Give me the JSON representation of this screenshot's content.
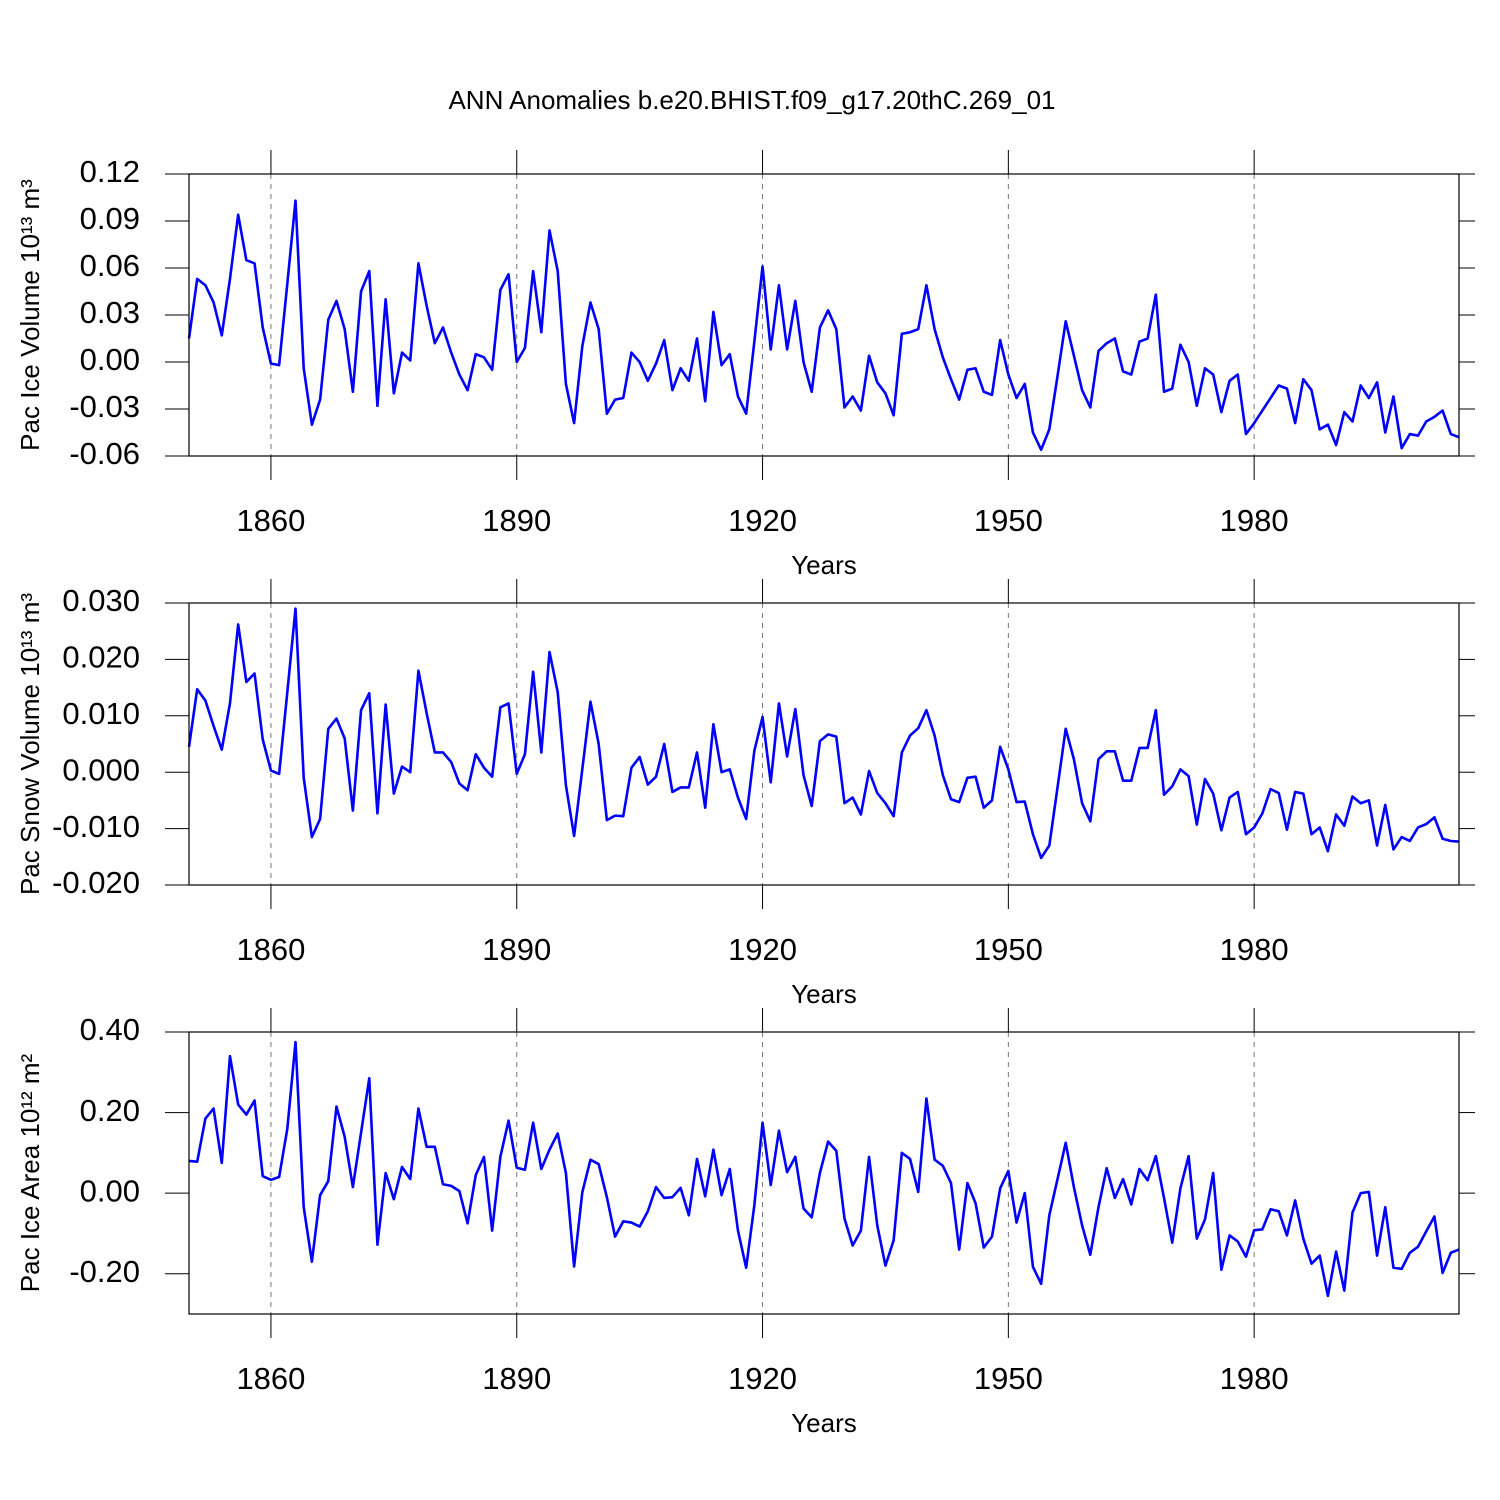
{
  "chart_data": [
    {
      "type": "line",
      "title": "ANN Anomalies b.e20.BHIST.f09_g17.20thC.269_01",
      "xlabel": "Years",
      "ylabel": "Pac Ice Volume 10¹³ m³",
      "x": [
        1850,
        1851,
        1852,
        1853,
        1854,
        1855,
        1856,
        1857,
        1858,
        1859,
        1860,
        1861,
        1862,
        1863,
        1864,
        1865,
        1866,
        1867,
        1868,
        1869,
        1870,
        1871,
        1872,
        1873,
        1874,
        1875,
        1876,
        1877,
        1878,
        1879,
        1880,
        1881,
        1882,
        1883,
        1884,
        1885,
        1886,
        1887,
        1888,
        1889,
        1890,
        1891,
        1892,
        1893,
        1894,
        1895,
        1896,
        1897,
        1898,
        1899,
        1900,
        1901,
        1902,
        1903,
        1904,
        1905,
        1906,
        1907,
        1908,
        1909,
        1910,
        1911,
        1912,
        1913,
        1914,
        1915,
        1916,
        1917,
        1918,
        1919,
        1920,
        1921,
        1922,
        1923,
        1924,
        1925,
        1926,
        1927,
        1928,
        1929,
        1930,
        1931,
        1932,
        1933,
        1934,
        1935,
        1936,
        1937,
        1938,
        1939,
        1940,
        1941,
        1942,
        1943,
        1944,
        1945,
        1946,
        1947,
        1948,
        1949,
        1950,
        1951,
        1952,
        1953,
        1954,
        1955,
        1956,
        1957,
        1958,
        1959,
        1960,
        1961,
        1962,
        1963,
        1964,
        1965,
        1966,
        1967,
        1968,
        1969,
        1970,
        1971,
        1972,
        1973,
        1974,
        1975,
        1976,
        1977,
        1978,
        1979,
        1980,
        1981,
        1982,
        1983,
        1984,
        1985,
        1986,
        1987,
        1988,
        1989,
        1990,
        1991,
        1992,
        1993,
        1994,
        1995,
        1996,
        1997,
        1998,
        1999,
        2000,
        2001,
        2002,
        2003,
        2004,
        2005
      ],
      "series": [
        {
          "color": "#0000ff",
          "values": [
            0.015,
            0.053,
            0.049,
            0.038,
            0.017,
            0.053,
            0.094,
            0.065,
            0.063,
            0.022,
            -0.001,
            -0.002,
            0.05,
            0.103,
            -0.004,
            -0.04,
            -0.024,
            0.027,
            0.039,
            0.021,
            -0.019,
            0.045,
            0.058,
            -0.028,
            0.04,
            -0.02,
            0.006,
            0.001,
            0.063,
            0.036,
            0.012,
            0.022,
            0.006,
            -0.008,
            -0.018,
            0.005,
            0.003,
            -0.005,
            0.046,
            0.056,
            0.0,
            0.009,
            0.058,
            0.019,
            0.084,
            0.058,
            -0.014,
            -0.039,
            0.01,
            0.038,
            0.021,
            -0.033,
            -0.024,
            -0.023,
            0.006,
            0.0,
            -0.012,
            -0.001,
            0.014,
            -0.018,
            -0.004,
            -0.012,
            0.015,
            -0.025,
            0.032,
            -0.002,
            0.005,
            -0.022,
            -0.033,
            0.013,
            0.061,
            0.008,
            0.049,
            0.008,
            0.039,
            0.0,
            -0.019,
            0.022,
            0.033,
            0.021,
            -0.029,
            -0.022,
            -0.031,
            0.004,
            -0.013,
            -0.02,
            -0.034,
            0.018,
            0.019,
            0.021,
            0.049,
            0.021,
            0.003,
            -0.011,
            -0.024,
            -0.005,
            -0.004,
            -0.019,
            -0.021,
            0.014,
            -0.008,
            -0.023,
            -0.014,
            -0.045,
            -0.056,
            -0.043,
            -0.009,
            0.026,
            0.004,
            -0.018,
            -0.029,
            0.007,
            0.012,
            0.015,
            -0.006,
            -0.008,
            0.013,
            0.015,
            0.043,
            -0.019,
            -0.017,
            0.011,
            0.0,
            -0.028,
            -0.004,
            -0.008,
            -0.032,
            -0.012,
            -0.008,
            -0.046,
            -0.039,
            -0.031,
            -0.023,
            -0.015,
            -0.017,
            -0.039,
            -0.011,
            -0.018,
            -0.043,
            -0.04,
            -0.053,
            -0.032,
            -0.038,
            -0.015,
            -0.023,
            -0.013,
            -0.045,
            -0.022,
            -0.055,
            -0.046,
            -0.047,
            -0.038,
            -0.035,
            -0.031,
            -0.046,
            -0.048
          ]
        }
      ],
      "xlim": [
        1850,
        2005
      ],
      "xticks": [
        1860,
        1890,
        1920,
        1950,
        1980
      ],
      "ylim": [
        -0.06,
        0.12
      ],
      "yticks": [
        0.12,
        0.09,
        0.06,
        0.03,
        {
          "value": 0,
          "label": "0.00"
        },
        -0.03,
        -0.06
      ],
      "grid": true
    },
    {
      "type": "line",
      "xlabel": "Years",
      "ylabel": "Pac Snow Volume 10¹³ m³",
      "x": [
        1850,
        1851,
        1852,
        1853,
        1854,
        1855,
        1856,
        1857,
        1858,
        1859,
        1860,
        1861,
        1862,
        1863,
        1864,
        1865,
        1866,
        1867,
        1868,
        1869,
        1870,
        1871,
        1872,
        1873,
        1874,
        1875,
        1876,
        1877,
        1878,
        1879,
        1880,
        1881,
        1882,
        1883,
        1884,
        1885,
        1886,
        1887,
        1888,
        1889,
        1890,
        1891,
        1892,
        1893,
        1894,
        1895,
        1896,
        1897,
        1898,
        1899,
        1900,
        1901,
        1902,
        1903,
        1904,
        1905,
        1906,
        1907,
        1908,
        1909,
        1910,
        1911,
        1912,
        1913,
        1914,
        1915,
        1916,
        1917,
        1918,
        1919,
        1920,
        1921,
        1922,
        1923,
        1924,
        1925,
        1926,
        1927,
        1928,
        1929,
        1930,
        1931,
        1932,
        1933,
        1934,
        1935,
        1936,
        1937,
        1938,
        1939,
        1940,
        1941,
        1942,
        1943,
        1944,
        1945,
        1946,
        1947,
        1948,
        1949,
        1950,
        1951,
        1952,
        1953,
        1954,
        1955,
        1956,
        1957,
        1958,
        1959,
        1960,
        1961,
        1962,
        1963,
        1964,
        1965,
        1966,
        1967,
        1968,
        1969,
        1970,
        1971,
        1972,
        1973,
        1974,
        1975,
        1976,
        1977,
        1978,
        1979,
        1980,
        1981,
        1982,
        1983,
        1984,
        1985,
        1986,
        1987,
        1988,
        1989,
        1990,
        1991,
        1992,
        1993,
        1994,
        1995,
        1996,
        1997,
        1998,
        1999,
        2000,
        2001,
        2002,
        2003,
        2004,
        2005
      ],
      "series": [
        {
          "color": "#0000ff",
          "values": [
            0.0045,
            0.0147,
            0.0127,
            0.0082,
            0.004,
            0.0122,
            0.0262,
            0.016,
            0.0175,
            0.0058,
            0.0003,
            -0.0003,
            0.0142,
            0.029,
            -0.001,
            -0.0115,
            -0.0083,
            0.0077,
            0.0095,
            0.006,
            -0.0068,
            0.011,
            0.014,
            -0.0073,
            0.012,
            -0.0038,
            0.001,
            0.0,
            0.018,
            0.0105,
            0.0035,
            0.0035,
            0.0018,
            -0.002,
            -0.0032,
            0.0032,
            0.0008,
            -0.0008,
            0.0115,
            0.0122,
            -0.0003,
            0.0032,
            0.0178,
            0.0035,
            0.0213,
            0.0142,
            -0.0023,
            -0.0113,
            0.0005,
            0.0125,
            0.005,
            -0.0085,
            -0.0077,
            -0.0078,
            0.0008,
            0.0027,
            -0.0022,
            -0.0008,
            0.005,
            -0.0035,
            -0.0027,
            -0.0027,
            0.0035,
            -0.0063,
            0.0085,
            0.0,
            0.0005,
            -0.0045,
            -0.0083,
            0.0038,
            0.0098,
            -0.0018,
            0.0122,
            0.0028,
            0.0112,
            -0.0005,
            -0.006,
            0.0055,
            0.0067,
            0.0063,
            -0.0055,
            -0.0045,
            -0.0075,
            0.0002,
            -0.0037,
            -0.0055,
            -0.0078,
            0.0035,
            0.0065,
            0.0078,
            0.011,
            0.0065,
            -0.0005,
            -0.0048,
            -0.0053,
            -0.001,
            -0.0008,
            -0.0063,
            -0.005,
            0.0045,
            0.0005,
            -0.0053,
            -0.0052,
            -0.011,
            -0.0152,
            -0.013,
            -0.0027,
            0.0077,
            0.0023,
            -0.0055,
            -0.0087,
            0.0023,
            0.0037,
            0.0037,
            -0.0015,
            -0.0015,
            0.0043,
            0.0043,
            0.011,
            -0.004,
            -0.0025,
            0.0005,
            -0.0007,
            -0.0093,
            -0.0012,
            -0.0038,
            -0.0103,
            -0.0045,
            -0.0035,
            -0.011,
            -0.0098,
            -0.0073,
            -0.003,
            -0.0037,
            -0.0102,
            -0.0035,
            -0.0038,
            -0.011,
            -0.0098,
            -0.014,
            -0.0075,
            -0.0095,
            -0.0043,
            -0.0055,
            -0.005,
            -0.013,
            -0.0058,
            -0.0137,
            -0.0115,
            -0.0122,
            -0.0098,
            -0.0092,
            -0.008,
            -0.0118,
            -0.0122,
            -0.0123
          ]
        }
      ],
      "xlim": [
        1850,
        2005
      ],
      "xticks": [
        1860,
        1890,
        1920,
        1950,
        1980
      ],
      "ylim": [
        -0.02,
        0.03
      ],
      "yticks": [
        {
          "value": 0.03,
          "label": "0.030"
        },
        {
          "value": 0.02,
          "label": "0.020"
        },
        {
          "value": 0.01,
          "label": "0.010"
        },
        {
          "value": 0,
          "label": "0.000"
        },
        {
          "value": -0.01,
          "label": "-0.010"
        },
        {
          "value": -0.02,
          "label": "-0.020"
        }
      ],
      "grid": true
    },
    {
      "type": "line",
      "xlabel": "Years",
      "ylabel": "Pac Ice Area 10¹² m²",
      "x": [
        1850,
        1851,
        1852,
        1853,
        1854,
        1855,
        1856,
        1857,
        1858,
        1859,
        1860,
        1861,
        1862,
        1863,
        1864,
        1865,
        1866,
        1867,
        1868,
        1869,
        1870,
        1871,
        1872,
        1873,
        1874,
        1875,
        1876,
        1877,
        1878,
        1879,
        1880,
        1881,
        1882,
        1883,
        1884,
        1885,
        1886,
        1887,
        1888,
        1889,
        1890,
        1891,
        1892,
        1893,
        1894,
        1895,
        1896,
        1897,
        1898,
        1899,
        1900,
        1901,
        1902,
        1903,
        1904,
        1905,
        1906,
        1907,
        1908,
        1909,
        1910,
        1911,
        1912,
        1913,
        1914,
        1915,
        1916,
        1917,
        1918,
        1919,
        1920,
        1921,
        1922,
        1923,
        1924,
        1925,
        1926,
        1927,
        1928,
        1929,
        1930,
        1931,
        1932,
        1933,
        1934,
        1935,
        1936,
        1937,
        1938,
        1939,
        1940,
        1941,
        1942,
        1943,
        1944,
        1945,
        1946,
        1947,
        1948,
        1949,
        1950,
        1951,
        1952,
        1953,
        1954,
        1955,
        1956,
        1957,
        1958,
        1959,
        1960,
        1961,
        1962,
        1963,
        1964,
        1965,
        1966,
        1967,
        1968,
        1969,
        1970,
        1971,
        1972,
        1973,
        1974,
        1975,
        1976,
        1977,
        1978,
        1979,
        1980,
        1981,
        1982,
        1983,
        1984,
        1985,
        1986,
        1987,
        1988,
        1989,
        1990,
        1991,
        1992,
        1993,
        1994,
        1995,
        1996,
        1997,
        1998,
        1999,
        2000,
        2001,
        2002,
        2003,
        2004,
        2005
      ],
      "series": [
        {
          "color": "#0000ff",
          "values": [
            0.08,
            0.078,
            0.185,
            0.21,
            0.075,
            0.34,
            0.22,
            0.195,
            0.23,
            0.042,
            0.033,
            0.04,
            0.16,
            0.375,
            -0.035,
            -0.17,
            -0.005,
            0.03,
            0.215,
            0.14,
            0.015,
            0.15,
            0.285,
            -0.128,
            0.05,
            -0.015,
            0.065,
            0.035,
            0.21,
            0.115,
            0.115,
            0.022,
            0.018,
            0.005,
            -0.075,
            0.045,
            0.09,
            -0.093,
            0.09,
            0.18,
            0.063,
            0.058,
            0.175,
            0.06,
            0.108,
            0.148,
            0.05,
            -0.182,
            0.002,
            0.083,
            0.072,
            -0.01,
            -0.108,
            -0.07,
            -0.073,
            -0.083,
            -0.045,
            0.015,
            -0.012,
            -0.01,
            0.013,
            -0.055,
            0.085,
            -0.008,
            0.108,
            -0.005,
            0.06,
            -0.093,
            -0.185,
            -0.03,
            0.175,
            0.02,
            0.155,
            0.052,
            0.09,
            -0.038,
            -0.06,
            0.05,
            0.128,
            0.105,
            -0.063,
            -0.13,
            -0.093,
            0.09,
            -0.08,
            -0.18,
            -0.117,
            0.1,
            0.085,
            0.003,
            0.235,
            0.083,
            0.068,
            0.025,
            -0.14,
            0.025,
            -0.025,
            -0.135,
            -0.108,
            0.012,
            0.055,
            -0.073,
            0.0,
            -0.183,
            -0.225,
            -0.055,
            0.035,
            0.125,
            0.015,
            -0.08,
            -0.153,
            -0.035,
            0.062,
            -0.012,
            0.035,
            -0.028,
            0.06,
            0.032,
            0.092,
            -0.012,
            -0.123,
            0.012,
            0.092,
            -0.113,
            -0.065,
            0.05,
            -0.19,
            -0.105,
            -0.12,
            -0.158,
            -0.092,
            -0.09,
            -0.04,
            -0.045,
            -0.105,
            -0.018,
            -0.113,
            -0.175,
            -0.155,
            -0.255,
            -0.145,
            -0.242,
            -0.048,
            0.0,
            0.003,
            -0.155,
            -0.035,
            -0.185,
            -0.188,
            -0.148,
            -0.133,
            -0.095,
            -0.058,
            -0.198,
            -0.148,
            -0.14
          ]
        }
      ],
      "xlim": [
        1850,
        2005
      ],
      "xticks": [
        1860,
        1890,
        1920,
        1950,
        1980
      ],
      "ylim": [
        -0.3,
        0.4
      ],
      "yticks": [
        {
          "value": 0.4,
          "label": "0.40"
        },
        {
          "value": 0.2,
          "label": "0.20"
        },
        {
          "value": 0,
          "label": "0.00"
        },
        {
          "value": -0.2,
          "label": "-0.20"
        }
      ],
      "grid": true
    }
  ]
}
